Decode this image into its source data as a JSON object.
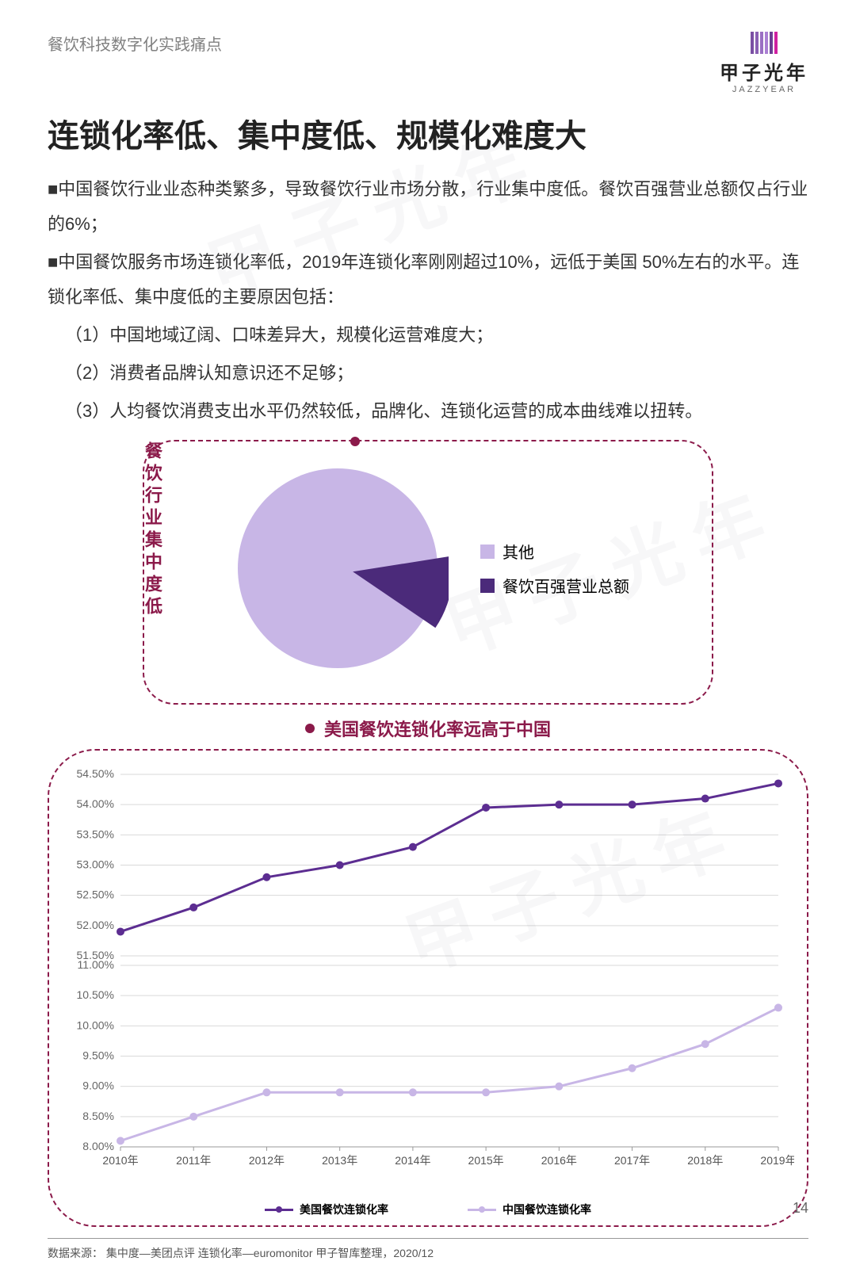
{
  "header": {
    "breadcrumb": "餐饮科技数字化实践痛点",
    "logo_main": "甲子光年",
    "logo_sub": "JAZZYEAR",
    "logo_bar_colors": [
      "#7a4fa3",
      "#8a5fb3",
      "#9a6fc3",
      "#aa7fd3",
      "#6a3f93",
      "#d020a0"
    ]
  },
  "title": "连锁化率低、集中度低、规模化难度大",
  "paragraphs": [
    "■中国餐饮行业业态种类繁多，导致餐饮行业市场分散，行业集中度低。餐饮百强营业总额仅占行业的6%；",
    "■中国餐饮服务市场连锁化率低，2019年连锁化率刚刚超过10%，远低于美国 50%左右的水平。连锁化率低、集中度低的主要原因包括：",
    "（1）中国地域辽阔、口味差异大，规模化运营难度大；",
    "（2）消费者品牌认知意识还不足够；",
    "（3）人均餐饮消费支出水平仍然较低，品牌化、连锁化运营的成本曲线难以扭转。"
  ],
  "pie_chart": {
    "type": "pie",
    "side_title": "餐饮行业集中度低",
    "slices": [
      {
        "label": "其他",
        "value": 94,
        "color": "#c8b6e6"
      },
      {
        "label": "餐饮百强营业总额",
        "value": 6,
        "color": "#4b2a7a"
      }
    ],
    "background": "#ffffff"
  },
  "line_chart": {
    "type": "line",
    "title": "美国餐饮连锁化率远高于中国",
    "categories": [
      "2010年",
      "2011年",
      "2012年",
      "2013年",
      "2014年",
      "2015年",
      "2016年",
      "2017年",
      "2018年",
      "2019年"
    ],
    "y_upper_ticks": [
      "51.50%",
      "52.00%",
      "52.50%",
      "53.00%",
      "53.50%",
      "54.00%",
      "54.50%"
    ],
    "y_lower_ticks": [
      "8.00%",
      "8.50%",
      "9.00%",
      "9.50%",
      "10.00%",
      "10.50%",
      "11.00%"
    ],
    "series": [
      {
        "name": "美国餐饮连锁化率",
        "color": "#5c2d91",
        "values": [
          51.9,
          52.3,
          52.8,
          53.0,
          53.3,
          53.95,
          54.0,
          54.0,
          54.1,
          54.35
        ]
      },
      {
        "name": "中国餐饮连锁化率",
        "color": "#c8b6e6",
        "values": [
          8.1,
          8.5,
          8.9,
          8.9,
          8.9,
          8.9,
          9.0,
          9.3,
          9.7,
          10.3
        ]
      }
    ],
    "grid_color": "#d9d9d9",
    "axis_font": 14,
    "line_width": 3,
    "marker_radius": 5
  },
  "footer": {
    "source": "数据来源：  集中度—美团点评    连锁化率—euromonitor    甲子智库整理，2020/12",
    "page": "14"
  },
  "watermark_text": "甲子光年"
}
